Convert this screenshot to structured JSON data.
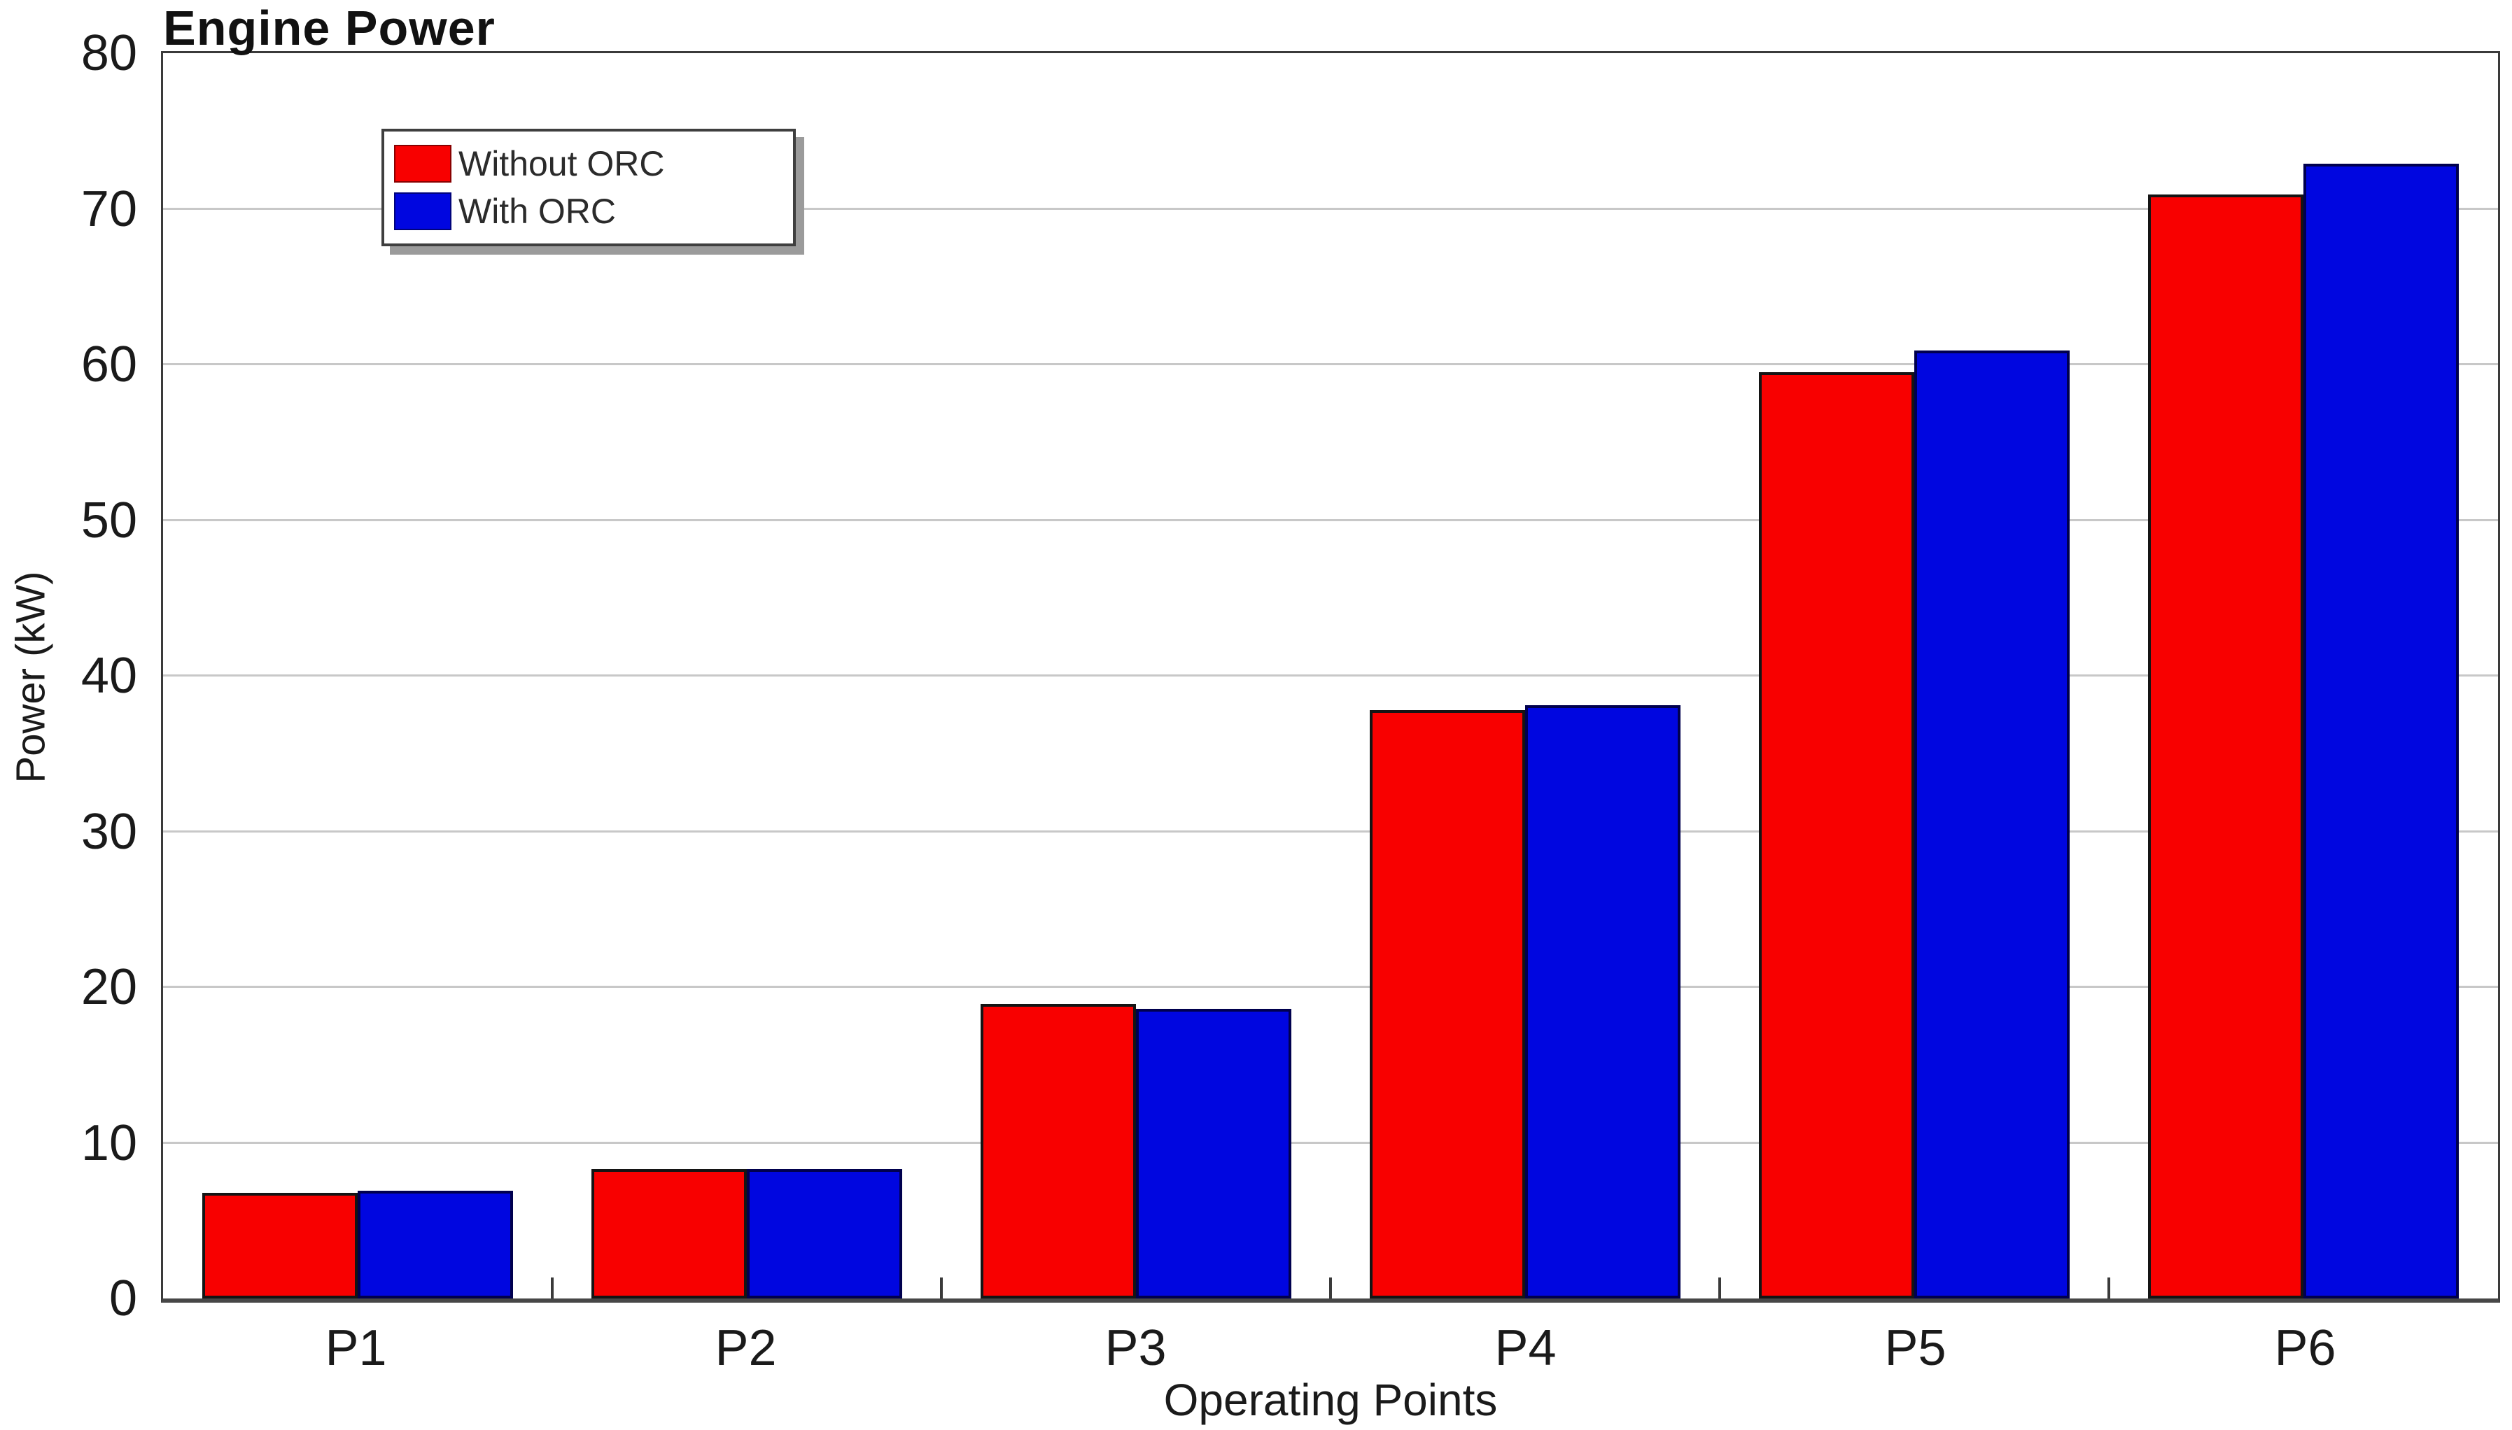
{
  "chart_data": {
    "type": "bar",
    "title": "Engine Power",
    "xlabel": "Operating Points",
    "ylabel": "Power (kW)",
    "categories": [
      "P1",
      "P2",
      "P3",
      "P4",
      "P5",
      "P6"
    ],
    "series": [
      {
        "name": "Without ORC",
        "color": "#f80000",
        "border_color": "#141414",
        "values": [
          6.8,
          8.3,
          18.9,
          37.8,
          59.5,
          70.9
        ]
      },
      {
        "name": "With ORC",
        "color": "#0006e0",
        "border_color": "#00004e",
        "values": [
          6.9,
          8.3,
          18.6,
          38.1,
          60.9,
          72.9
        ]
      }
    ],
    "ylim": [
      0,
      80
    ],
    "ytick_step": 10,
    "grid": true,
    "legend_position": "top-left",
    "colors": {
      "gridline": "#c8c8c8",
      "frame": "#3a3a3a",
      "axis_baseline": "#474747",
      "text": "#1a1a1a",
      "legend_shadow": "#9b9b9b"
    }
  }
}
